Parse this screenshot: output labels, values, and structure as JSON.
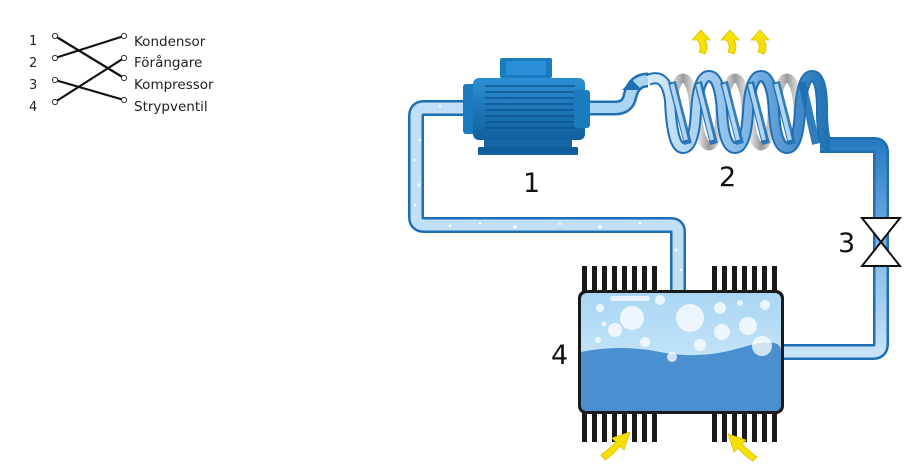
{
  "legend": {
    "numbers": [
      "1",
      "2",
      "3",
      "4"
    ],
    "terms": [
      "Kondensor",
      "Förångare",
      "Kompressor",
      "Strypventil"
    ]
  },
  "components": {
    "compressor": "1",
    "condenser": "2",
    "valve": "3",
    "evaporator": "4"
  },
  "colors": {
    "pipe_dark": "#1f6fb5",
    "pipe_light": "#b9dcf3",
    "liquid": "#4a8fd0",
    "motor": "#1a7bbf",
    "fins": "#1a1a1a",
    "heat_arrows": "#f5e000"
  }
}
